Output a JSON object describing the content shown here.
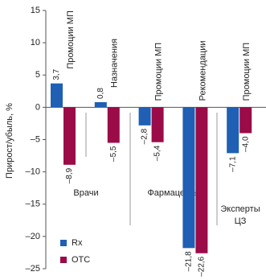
{
  "chart_data": {
    "type": "bar",
    "y_label": "Прирост/убыль, %",
    "categories": [
      "Промоции МП",
      "Назначения",
      "Промоции МП",
      "Рекомендации",
      "Промоции МП"
    ],
    "groups": [
      "Врачи",
      "Фармацевты",
      "Эксперты ЦЗ"
    ],
    "series": [
      {
        "name": "Rx",
        "color": "#1f5fb4",
        "values": [
          3.7,
          0.8,
          -2.8,
          -21.8,
          -7.1
        ],
        "value_labels": [
          "3,7",
          "0,8",
          "–2,8",
          "–21,8",
          "–7,1"
        ]
      },
      {
        "name": "OTC",
        "color": "#9a0b47",
        "values": [
          -8.9,
          -5.5,
          -5.4,
          -22.6,
          -4.0
        ],
        "value_labels": [
          "–8,9",
          "–5,5",
          "–5,4",
          "–22,6",
          "–4,0"
        ]
      }
    ],
    "ylim": [
      -25,
      15
    ],
    "yticks": [
      {
        "value": -25,
        "label": "–25"
      },
      {
        "value": -20,
        "label": "–20"
      },
      {
        "value": -15,
        "label": "–15"
      },
      {
        "value": -10,
        "label": "–10"
      },
      {
        "value": -5,
        "label": "–5"
      },
      0,
      5,
      10,
      15
    ],
    "grid": false,
    "legend": "bottom-left"
  }
}
